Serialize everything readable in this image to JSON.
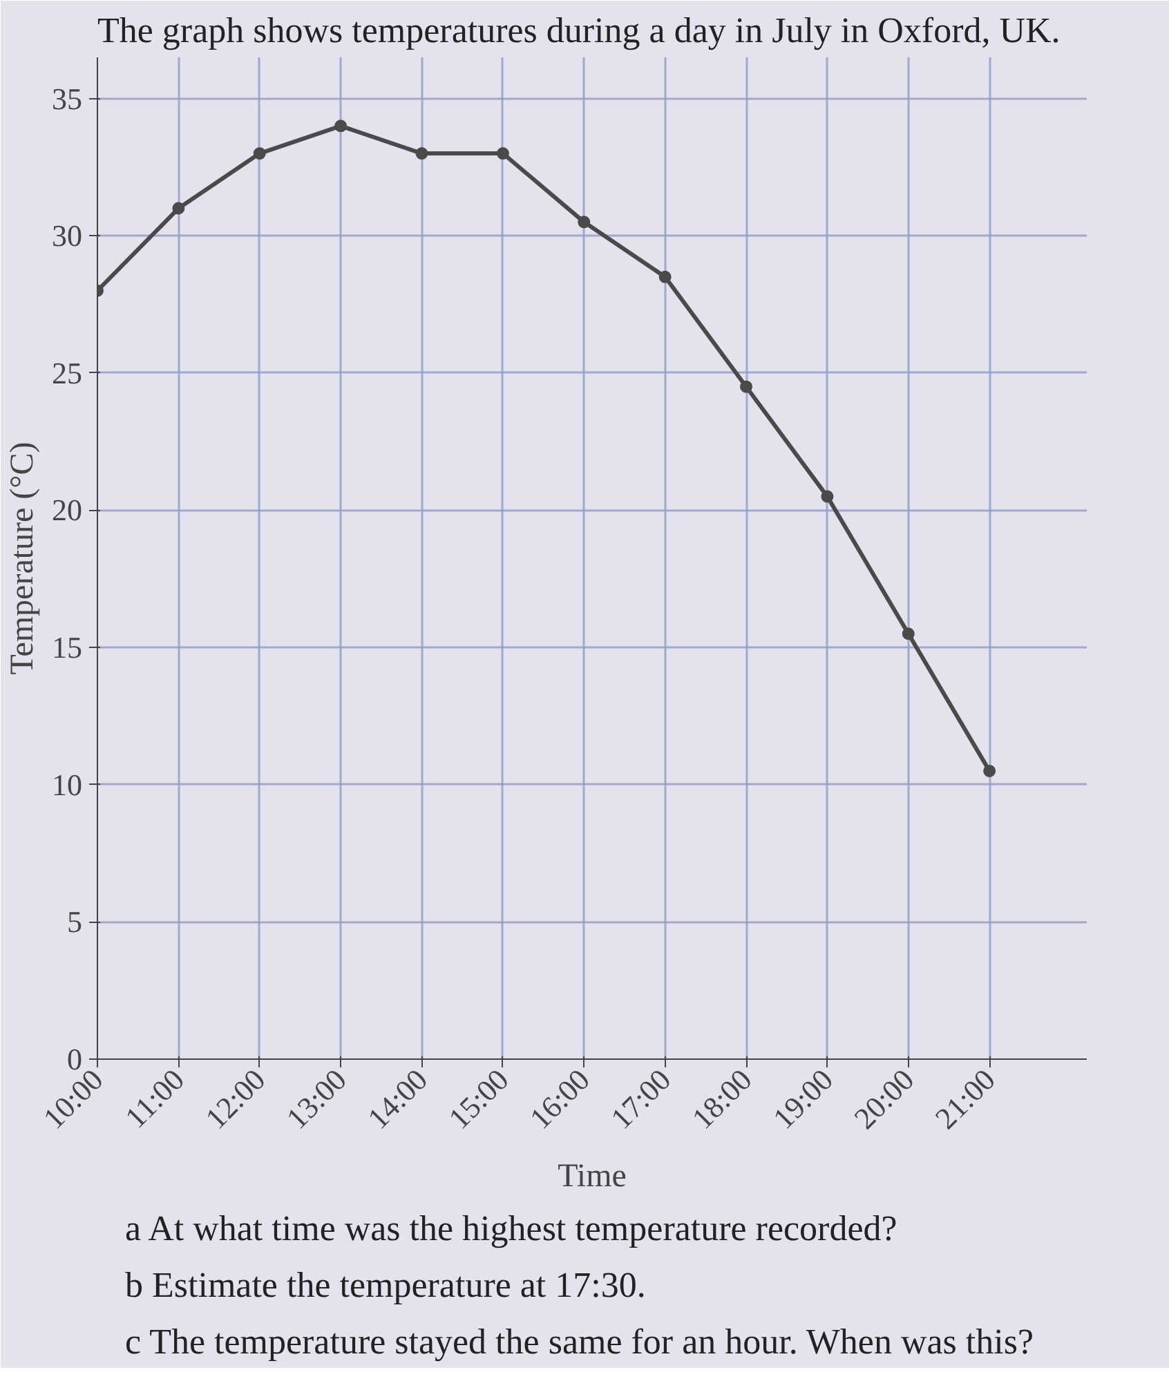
{
  "chart_data": {
    "type": "line",
    "title": "The graph shows temperatures during a day in July in Oxford, UK.",
    "xlabel": "Time",
    "ylabel": "Temperature (°C)",
    "x": [
      10,
      11,
      12,
      13,
      14,
      15,
      16,
      17,
      18,
      19,
      20,
      21
    ],
    "series": [
      {
        "color": "#4a4a4a",
        "values": [
          28,
          31,
          33,
          34,
          33,
          33,
          30.5,
          28.5,
          24.5,
          20.5,
          15.5,
          10.5
        ]
      }
    ],
    "xlim": [
      10,
      22.2
    ],
    "ylim": [
      0,
      36.5
    ],
    "xticks": [
      {
        "value": 10,
        "label": "10:00"
      },
      {
        "value": 11,
        "label": "11:00"
      },
      {
        "value": 12,
        "label": "12:00"
      },
      {
        "value": 13,
        "label": "13:00"
      },
      {
        "value": 14,
        "label": "14:00"
      },
      {
        "value": 15,
        "label": "15:00"
      },
      {
        "value": 16,
        "label": "16:00"
      },
      {
        "value": 17,
        "label": "17:00"
      },
      {
        "value": 18,
        "label": "18:00"
      },
      {
        "value": 19,
        "label": "19:00"
      },
      {
        "value": 20,
        "label": "20:00"
      },
      {
        "value": 21,
        "label": "21:00"
      }
    ],
    "yticks": [
      0,
      5,
      10,
      15,
      20,
      25,
      30,
      35
    ],
    "grid": true,
    "marker": "circle",
    "line_style": "solid",
    "annotations": [
      "a At what time was the highest temperature recorded?",
      "b Estimate the temperature at 17:30.",
      "c The temperature stayed the same for an hour. When was this?"
    ]
  }
}
